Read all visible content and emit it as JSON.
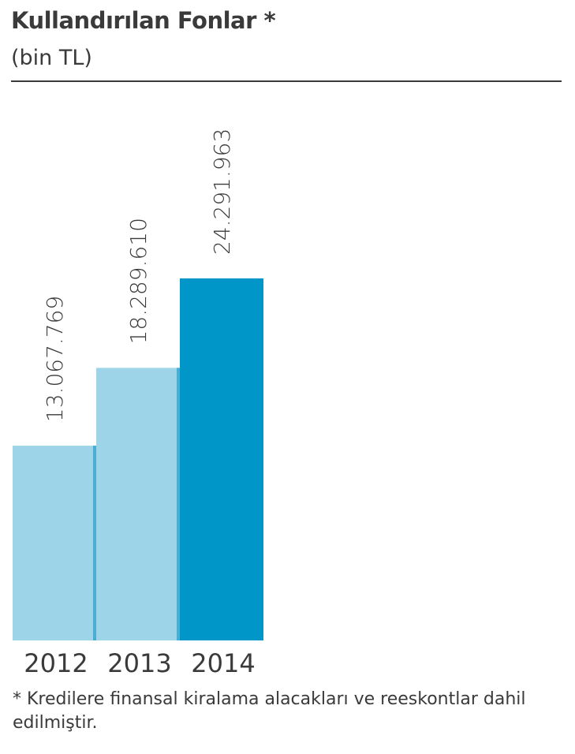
{
  "chart_data": {
    "type": "bar",
    "title": "Kullandırılan Fonlar *",
    "subtitle": "(bin TL)",
    "categories": [
      "2012",
      "2013",
      "2014"
    ],
    "values": [
      13067769,
      18289610,
      24291963
    ],
    "value_labels": [
      "13.067.769",
      "18.289.610",
      "24.291.963"
    ],
    "colors": [
      "#9dd4e8",
      "#9dd4e8",
      "#0096c8"
    ],
    "footnote": "* Kredilere finansal kiralama alacakları ve reeskontlar dahil edilmiştir."
  }
}
